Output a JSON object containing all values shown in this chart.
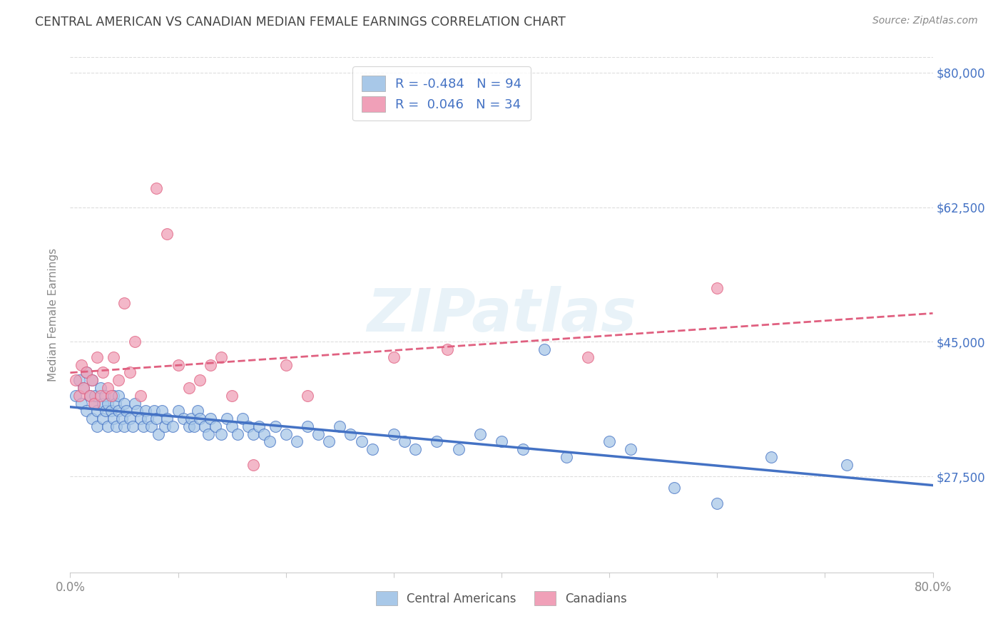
{
  "title": "CENTRAL AMERICAN VS CANADIAN MEDIAN FEMALE EARNINGS CORRELATION CHART",
  "source": "Source: ZipAtlas.com",
  "ylabel": "Median Female Earnings",
  "xlim": [
    0.0,
    0.8
  ],
  "ylim": [
    15000,
    82000
  ],
  "yticks": [
    27500,
    45000,
    62500,
    80000
  ],
  "ytick_labels": [
    "$27,500",
    "$45,000",
    "$62,500",
    "$80,000"
  ],
  "watermark": "ZIPatlas",
  "blue_color": "#a8c8e8",
  "pink_color": "#f0a0b8",
  "line_blue": "#4472c4",
  "line_pink": "#e06080",
  "legend1_text": "R = -0.484   N = 94",
  "legend2_text": "R =  0.046   N = 34",
  "blue_scatter_x": [
    0.005,
    0.008,
    0.01,
    0.012,
    0.015,
    0.015,
    0.018,
    0.02,
    0.02,
    0.022,
    0.023,
    0.025,
    0.025,
    0.028,
    0.03,
    0.03,
    0.032,
    0.033,
    0.035,
    0.035,
    0.038,
    0.04,
    0.04,
    0.042,
    0.043,
    0.045,
    0.045,
    0.048,
    0.05,
    0.05,
    0.052,
    0.055,
    0.058,
    0.06,
    0.062,
    0.065,
    0.068,
    0.07,
    0.072,
    0.075,
    0.078,
    0.08,
    0.082,
    0.085,
    0.088,
    0.09,
    0.095,
    0.1,
    0.105,
    0.11,
    0.112,
    0.115,
    0.118,
    0.12,
    0.125,
    0.128,
    0.13,
    0.135,
    0.14,
    0.145,
    0.15,
    0.155,
    0.16,
    0.165,
    0.17,
    0.175,
    0.18,
    0.185,
    0.19,
    0.2,
    0.21,
    0.22,
    0.23,
    0.24,
    0.25,
    0.26,
    0.27,
    0.28,
    0.3,
    0.31,
    0.32,
    0.34,
    0.36,
    0.38,
    0.4,
    0.42,
    0.44,
    0.46,
    0.5,
    0.52,
    0.56,
    0.6,
    0.65,
    0.72
  ],
  "blue_scatter_y": [
    38000,
    40000,
    37000,
    39000,
    41000,
    36000,
    38000,
    40000,
    35000,
    37000,
    38000,
    36000,
    34000,
    39000,
    37000,
    35000,
    38000,
    36000,
    37000,
    34000,
    36000,
    38000,
    35000,
    37000,
    34000,
    36000,
    38000,
    35000,
    37000,
    34000,
    36000,
    35000,
    34000,
    37000,
    36000,
    35000,
    34000,
    36000,
    35000,
    34000,
    36000,
    35000,
    33000,
    36000,
    34000,
    35000,
    34000,
    36000,
    35000,
    34000,
    35000,
    34000,
    36000,
    35000,
    34000,
    33000,
    35000,
    34000,
    33000,
    35000,
    34000,
    33000,
    35000,
    34000,
    33000,
    34000,
    33000,
    32000,
    34000,
    33000,
    32000,
    34000,
    33000,
    32000,
    34000,
    33000,
    32000,
    31000,
    33000,
    32000,
    31000,
    32000,
    31000,
    33000,
    32000,
    31000,
    44000,
    30000,
    32000,
    31000,
    26000,
    24000,
    30000,
    29000
  ],
  "pink_scatter_x": [
    0.005,
    0.008,
    0.01,
    0.012,
    0.015,
    0.018,
    0.02,
    0.022,
    0.025,
    0.028,
    0.03,
    0.035,
    0.038,
    0.04,
    0.045,
    0.05,
    0.055,
    0.06,
    0.065,
    0.08,
    0.09,
    0.1,
    0.11,
    0.12,
    0.13,
    0.14,
    0.15,
    0.17,
    0.2,
    0.22,
    0.3,
    0.35,
    0.48,
    0.6
  ],
  "pink_scatter_y": [
    40000,
    38000,
    42000,
    39000,
    41000,
    38000,
    40000,
    37000,
    43000,
    38000,
    41000,
    39000,
    38000,
    43000,
    40000,
    50000,
    41000,
    45000,
    38000,
    65000,
    59000,
    42000,
    39000,
    40000,
    42000,
    43000,
    38000,
    29000,
    42000,
    38000,
    43000,
    44000,
    43000,
    52000
  ]
}
